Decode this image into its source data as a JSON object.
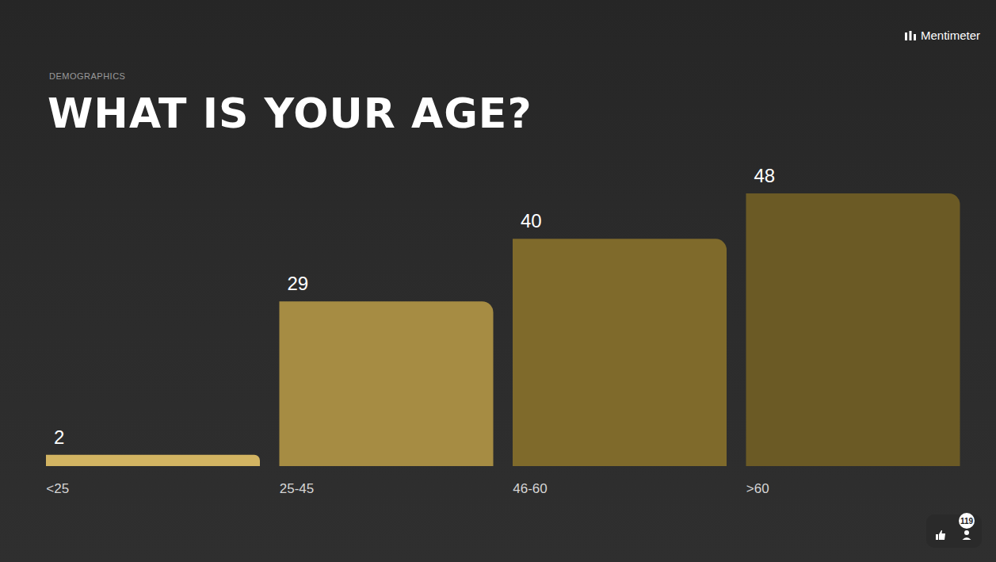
{
  "chart_data": {
    "type": "bar",
    "subtitle": "DEMOGRAPHICS",
    "title": "WHAT IS YOUR AGE?",
    "brand": "Mentimeter",
    "responses": 119,
    "categories": [
      "<25",
      "25-45",
      "46-60",
      ">60"
    ],
    "values": [
      2,
      29,
      40,
      48
    ],
    "colors": [
      "#d2b462",
      "#a68c43",
      "#7f6a2b",
      "#6b5a25"
    ],
    "data_labels": true,
    "tick_labels": "x",
    "grid": false
  }
}
